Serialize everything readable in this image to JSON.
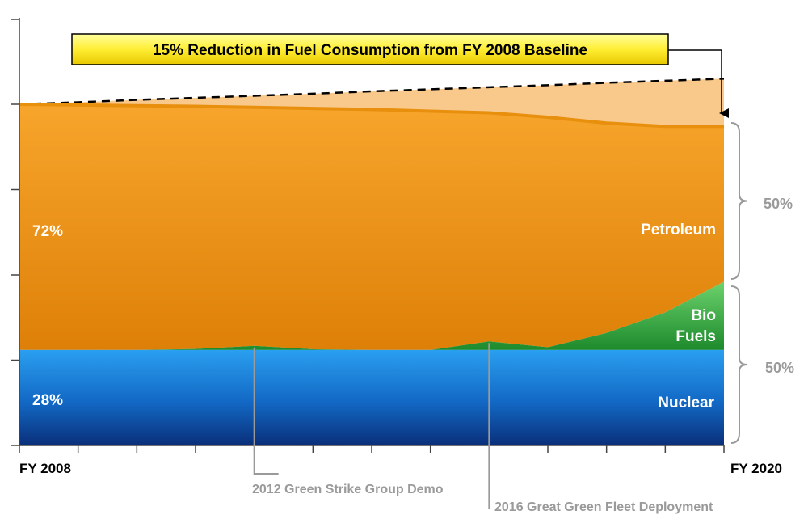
{
  "chart_data": {
    "type": "area",
    "x_start_label": "FY 2008",
    "x_end_label": "FY 2020",
    "x": [
      2008,
      2009,
      2010,
      2011,
      2012,
      2013,
      2014,
      2015,
      2016,
      2017,
      2018,
      2019,
      2020
    ],
    "ylim": [
      0,
      100
    ],
    "grid": true,
    "series": [
      {
        "name": "Nuclear",
        "value_label": "28%",
        "color": "#1f78d8",
        "values": [
          28,
          28,
          28,
          28,
          28,
          28,
          28,
          28,
          28,
          28,
          28,
          28,
          28
        ]
      },
      {
        "name": "Bio Fuels",
        "color": "#2e9c3a",
        "values": [
          0,
          0,
          0,
          0.3,
          1.2,
          0.2,
          0,
          0,
          2.5,
          0.8,
          5,
          11,
          20
        ]
      },
      {
        "name": "Petroleum",
        "value_label": "72%",
        "color": "#f29a1e",
        "values": [
          72,
          71.8,
          71.6,
          71.1,
          69.9,
          70.6,
          70.5,
          70,
          67,
          67.4,
          61.5,
          54.5,
          45.5
        ]
      }
    ],
    "baseline_projection": [
      100,
      100.6,
      101.3,
      101.9,
      102.5,
      103.1,
      103.8,
      104.4,
      105,
      105.6,
      106.3,
      106.9,
      107.5
    ],
    "target_reduction_label": "15% Reduction in Fuel Consumption from FY 2008 Baseline",
    "bracket_labels": [
      "50%",
      "50%"
    ],
    "annotations": [
      {
        "x": 2012,
        "label": "2012 Green Strike Group Demo"
      },
      {
        "x": 2016,
        "label": "2016 Great Green Fleet Deployment"
      }
    ]
  }
}
